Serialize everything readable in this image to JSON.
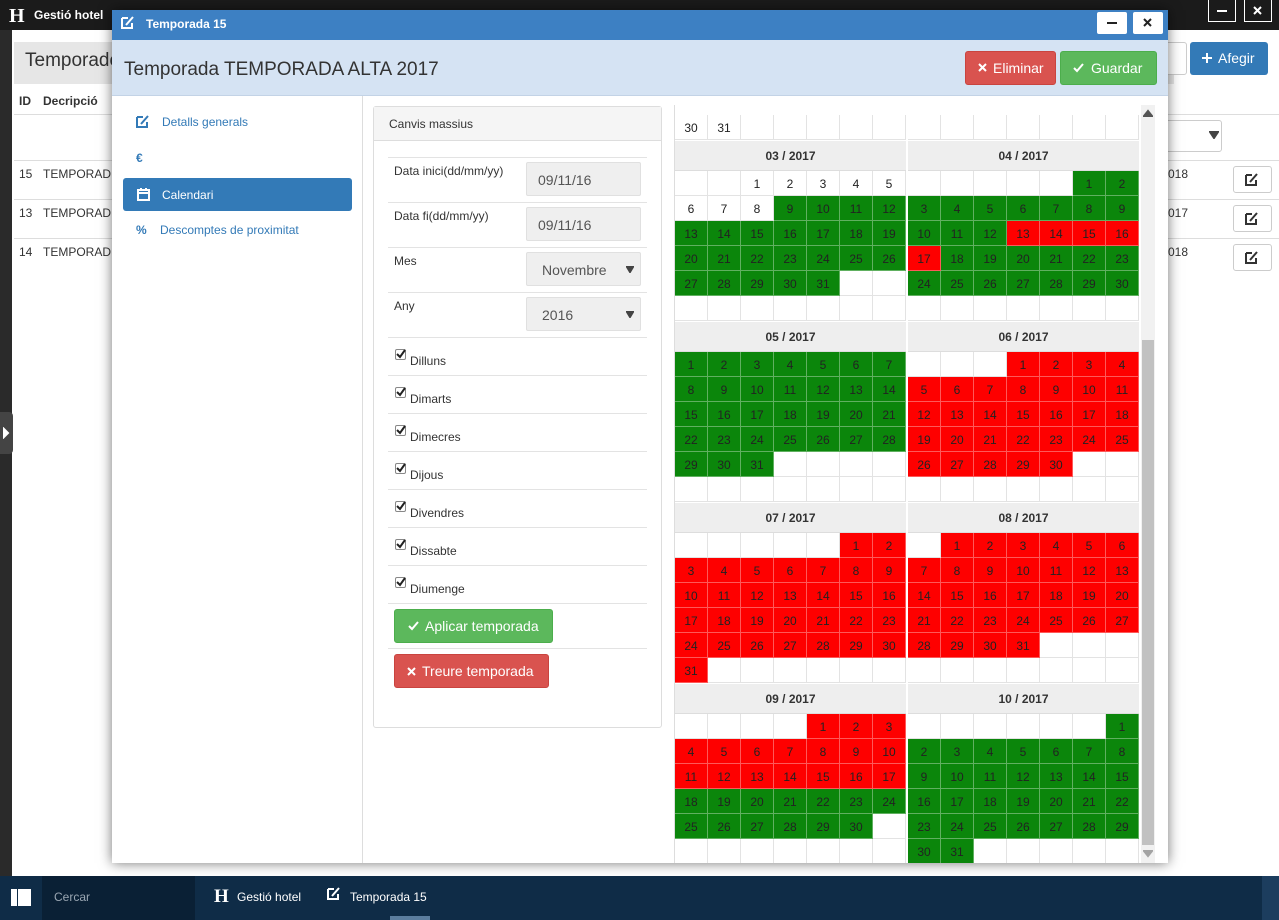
{
  "app": {
    "logo": "H",
    "title": "Gestió hotel"
  },
  "background": {
    "page_title": "Temporade",
    "add_button": "Afegir",
    "columns": [
      "ID",
      "Decripció"
    ],
    "rows": [
      [
        "15",
        "TEMPORAD",
        "018"
      ],
      [
        "13",
        "TEMPORAD",
        "017"
      ],
      [
        "14",
        "TEMPORAD",
        "018"
      ]
    ]
  },
  "modal": {
    "window_title": "Temporada 15",
    "title": "Temporada TEMPORADA ALTA 2017",
    "buttons": {
      "delete": "Eliminar",
      "save": "Guardar"
    },
    "nav": [
      {
        "label": "Detalls generals"
      },
      {
        "icon": "€"
      },
      {
        "label": "Calendari",
        "active": true
      },
      {
        "icon": "%",
        "label": "Descomptes de proximitat"
      }
    ],
    "panel": {
      "title": "Canvis massius",
      "fields": [
        {
          "label": "Data inici(dd/mm/yy)",
          "value": "09/11/16"
        },
        {
          "label": "Data fi(dd/mm/yy)",
          "value": "09/11/16"
        },
        {
          "label": "Mes",
          "value": "Novembre",
          "select": true
        },
        {
          "label": "Any",
          "value": "2016",
          "select": true
        }
      ],
      "days": [
        {
          "label": "Dilluns",
          "checked": true
        },
        {
          "label": "Dimarts",
          "checked": true
        },
        {
          "label": "Dimecres",
          "checked": true
        },
        {
          "label": "Dijous",
          "checked": true
        },
        {
          "label": "Divendres",
          "checked": true
        },
        {
          "label": "Dissabte",
          "checked": true
        },
        {
          "label": "Diumenge",
          "checked": true
        }
      ],
      "apply": "Aplicar temporada",
      "remove": "Treure temporada"
    },
    "calendar": {
      "partial": [
        [
          30,
          31,
          null,
          null,
          null,
          null,
          null
        ],
        [
          null,
          null,
          null,
          null,
          null,
          null,
          null
        ]
      ],
      "months": [
        {
          "title": "03 / 2017",
          "weeks": [
            [
              null,
              null,
              1,
              2,
              3,
              4,
              5
            ],
            [
              6,
              7,
              8,
              9,
              10,
              11,
              12
            ],
            [
              13,
              14,
              15,
              16,
              17,
              18,
              19
            ],
            [
              20,
              21,
              22,
              23,
              24,
              25,
              26
            ],
            [
              27,
              28,
              29,
              30,
              31,
              null,
              null
            ]
          ],
          "periods": [
            {
              "from": 9,
              "to": 31,
              "color": "#0b860b"
            }
          ]
        },
        {
          "title": "04 / 2017",
          "weeks": [
            [
              null,
              null,
              null,
              null,
              null,
              1,
              2
            ],
            [
              3,
              4,
              5,
              6,
              7,
              8,
              9
            ],
            [
              10,
              11,
              12,
              13,
              14,
              15,
              16
            ],
            [
              17,
              18,
              19,
              20,
              21,
              22,
              23
            ],
            [
              24,
              25,
              26,
              27,
              28,
              29,
              30
            ]
          ],
          "periods": [
            {
              "from": 1,
              "to": 12,
              "color": "#0b860b"
            },
            {
              "from": 13,
              "to": 17,
              "color": "#fe0000"
            },
            {
              "from": 18,
              "to": 30,
              "color": "#0b860b"
            }
          ]
        },
        {
          "title": "05 / 2017",
          "weeks": [
            [
              1,
              2,
              3,
              4,
              5,
              6,
              7
            ],
            [
              8,
              9,
              10,
              11,
              12,
              13,
              14
            ],
            [
              15,
              16,
              17,
              18,
              19,
              20,
              21
            ],
            [
              22,
              23,
              24,
              25,
              26,
              27,
              28
            ],
            [
              29,
              30,
              31,
              null,
              null,
              null,
              null
            ]
          ],
          "periods": [
            {
              "from": 1,
              "to": 31,
              "color": "#0b860b"
            }
          ]
        },
        {
          "title": "06 / 2017",
          "weeks": [
            [
              null,
              null,
              null,
              1,
              2,
              3,
              4
            ],
            [
              5,
              6,
              7,
              8,
              9,
              10,
              11
            ],
            [
              12,
              13,
              14,
              15,
              16,
              17,
              18
            ],
            [
              19,
              20,
              21,
              22,
              23,
              24,
              25
            ],
            [
              26,
              27,
              28,
              29,
              30,
              null,
              null
            ]
          ],
          "periods": [
            {
              "from": 1,
              "to": 30,
              "color": "#fe0000"
            }
          ]
        },
        {
          "title": "07 / 2017",
          "weeks": [
            [
              null,
              null,
              null,
              null,
              null,
              1,
              2
            ],
            [
              3,
              4,
              5,
              6,
              7,
              8,
              9
            ],
            [
              10,
              11,
              12,
              13,
              14,
              15,
              16
            ],
            [
              17,
              18,
              19,
              20,
              21,
              22,
              23
            ],
            [
              24,
              25,
              26,
              27,
              28,
              29,
              30
            ],
            [
              31,
              null,
              null,
              null,
              null,
              null,
              null
            ]
          ],
          "periods": [
            {
              "from": 1,
              "to": 31,
              "color": "#fe0000"
            }
          ]
        },
        {
          "title": "08 / 2017",
          "weeks": [
            [
              null,
              1,
              2,
              3,
              4,
              5,
              6
            ],
            [
              7,
              8,
              9,
              10,
              11,
              12,
              13
            ],
            [
              14,
              15,
              16,
              17,
              18,
              19,
              20
            ],
            [
              21,
              22,
              23,
              24,
              25,
              26,
              27
            ],
            [
              28,
              29,
              30,
              31,
              null,
              null,
              null
            ]
          ],
          "periods": [
            {
              "from": 1,
              "to": 31,
              "color": "#fe0000"
            }
          ]
        },
        {
          "title": "09 / 2017",
          "weeks": [
            [
              null,
              null,
              null,
              null,
              1,
              2,
              3
            ],
            [
              4,
              5,
              6,
              7,
              8,
              9,
              10
            ],
            [
              11,
              12,
              13,
              14,
              15,
              16,
              17
            ],
            [
              18,
              19,
              20,
              21,
              22,
              23,
              24
            ],
            [
              25,
              26,
              27,
              28,
              29,
              30,
              null
            ]
          ],
          "periods": [
            {
              "from": 1,
              "to": 17,
              "color": "#fe0000"
            },
            {
              "from": 18,
              "to": 30,
              "color": "#0b860b"
            }
          ]
        },
        {
          "title": "10 / 2017",
          "weeks": [
            [
              null,
              null,
              null,
              null,
              null,
              null,
              1
            ],
            [
              2,
              3,
              4,
              5,
              6,
              7,
              8
            ],
            [
              9,
              10,
              11,
              12,
              13,
              14,
              15
            ],
            [
              16,
              17,
              18,
              19,
              20,
              21,
              22
            ],
            [
              23,
              24,
              25,
              26,
              27,
              28,
              29
            ],
            [
              30,
              31,
              null,
              null,
              null,
              null,
              null
            ]
          ],
          "periods": [
            {
              "from": 1,
              "to": 31,
              "color": "#0b860b"
            }
          ]
        }
      ]
    }
  },
  "taskbar": {
    "search": "Cercar",
    "tabs": [
      "Gestió hotel",
      "Temporada 15"
    ]
  }
}
